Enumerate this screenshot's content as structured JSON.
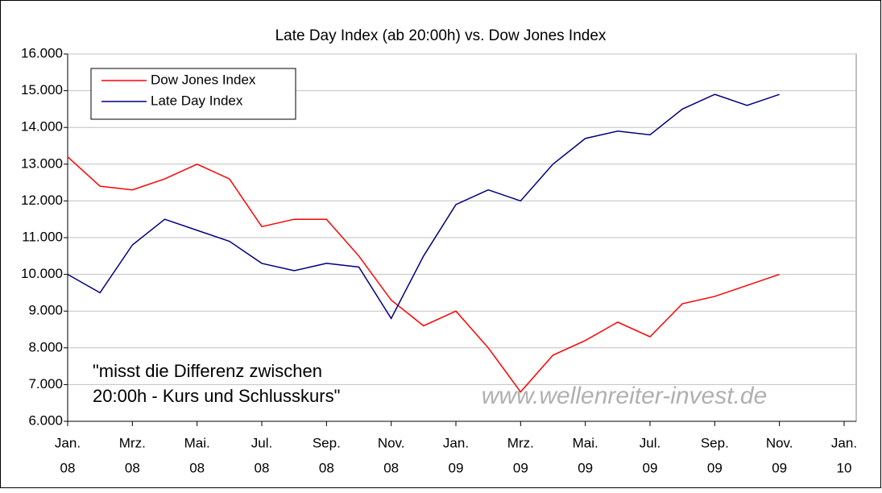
{
  "chart_data": {
    "type": "line",
    "title": "Late Day Index (ab 20:00h) vs. Dow Jones Index",
    "x": [
      "2008-01",
      "2008-02",
      "2008-03",
      "2008-04",
      "2008-05",
      "2008-06",
      "2008-07",
      "2008-08",
      "2008-09",
      "2008-10",
      "2008-11",
      "2008-12",
      "2009-01",
      "2009-02",
      "2009-03",
      "2009-04",
      "2009-05",
      "2009-06",
      "2009-07",
      "2009-08",
      "2009-09",
      "2009-10",
      "2009-11"
    ],
    "series": [
      {
        "name": "Dow Jones Index",
        "color": "#ff0000",
        "values": [
          13200,
          12400,
          12300,
          12600,
          13000,
          12600,
          11300,
          11500,
          11500,
          10500,
          9300,
          8600,
          9000,
          8000,
          6800,
          7800,
          8200,
          8700,
          8300,
          9200,
          9400,
          9700,
          10000
        ]
      },
      {
        "name": "Late Day Index",
        "color": "#000080",
        "values": [
          10000,
          9500,
          10800,
          11500,
          11200,
          10900,
          10300,
          10100,
          10300,
          10200,
          8800,
          10500,
          11900,
          12300,
          12000,
          13000,
          13700,
          13900,
          13800,
          14500,
          14900,
          14600,
          14900
        ]
      }
    ],
    "xlim": [
      "2008-01",
      "2010-01"
    ],
    "xticks": [
      {
        "value": "2008-01",
        "label": [
          "Jan.",
          "08"
        ]
      },
      {
        "value": "2008-03",
        "label": [
          "Mrz.",
          "08"
        ]
      },
      {
        "value": "2008-05",
        "label": [
          "Mai.",
          "08"
        ]
      },
      {
        "value": "2008-07",
        "label": [
          "Jul.",
          "08"
        ]
      },
      {
        "value": "2008-09",
        "label": [
          "Sep.",
          "08"
        ]
      },
      {
        "value": "2008-11",
        "label": [
          "Nov.",
          "08"
        ]
      },
      {
        "value": "2009-01",
        "label": [
          "Jan.",
          "09"
        ]
      },
      {
        "value": "2009-03",
        "label": [
          "Mrz.",
          "09"
        ]
      },
      {
        "value": "2009-05",
        "label": [
          "Mai.",
          "09"
        ]
      },
      {
        "value": "2009-07",
        "label": [
          "Jul.",
          "09"
        ]
      },
      {
        "value": "2009-09",
        "label": [
          "Sep.",
          "09"
        ]
      },
      {
        "value": "2009-11",
        "label": [
          "Nov.",
          "09"
        ]
      },
      {
        "value": "2010-01",
        "label": [
          "Jan.",
          "10"
        ]
      }
    ],
    "ylim": [
      6000,
      16000
    ],
    "yticks": [
      {
        "value": 6000,
        "label": "6.000"
      },
      {
        "value": 7000,
        "label": "7.000"
      },
      {
        "value": 8000,
        "label": "8.000"
      },
      {
        "value": 9000,
        "label": "9.000"
      },
      {
        "value": 10000,
        "label": "10.000"
      },
      {
        "value": 11000,
        "label": "11.000"
      },
      {
        "value": 12000,
        "label": "12.000"
      },
      {
        "value": 13000,
        "label": "13.000"
      },
      {
        "value": 14000,
        "label": "14.000"
      },
      {
        "value": 15000,
        "label": "15.000"
      },
      {
        "value": 16000,
        "label": "16.000"
      }
    ],
    "grid": true,
    "legend": "upper left",
    "annotations": [
      "\"misst die Differenz zwischen",
      "20:00h - Kurs und Schlusskurs\"",
      "www.wellenreiter-invest.de"
    ]
  }
}
